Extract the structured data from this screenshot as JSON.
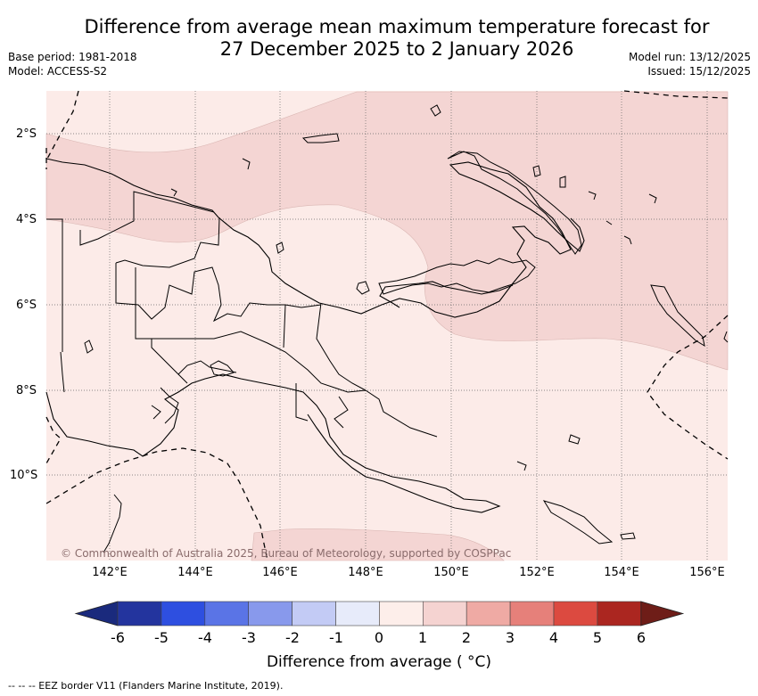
{
  "title_line1": "Difference from average mean maximum temperature forecast for",
  "title_line2": "27 December 2025 to 2 January 2026",
  "base_period": "Base period: 1981-2018",
  "model": "Model: ACCESS-S2",
  "model_run": "Model run: 13/12/2025",
  "issued": "Issued: 15/12/2025",
  "map": {
    "lon_range": [
      140.5,
      156.5
    ],
    "lat_range": [
      -12,
      -1
    ],
    "lat_ticks": [
      "2°S",
      "4°S",
      "6°S",
      "8°S",
      "10°S"
    ],
    "lon_ticks": [
      "142°E",
      "144°E",
      "146°E",
      "148°E",
      "150°E",
      "152°E",
      "154°E",
      "156°E"
    ],
    "copyright": "© Commonwealth of Australia 2025, Bureau of Meteorology, supported by COSPPac",
    "colors": {
      "anomaly_0_1": "#fbe9e6",
      "anomaly_1_2": "#f4d5d3",
      "ocean_background": "#fcebe8"
    }
  },
  "colorbar": {
    "tick_labels": [
      "-6",
      "-5",
      "-4",
      "-3",
      "-2",
      "-1",
      "0",
      "1",
      "2",
      "3",
      "4",
      "5",
      "6"
    ],
    "colors": [
      "#23349e",
      "#2e4fe0",
      "#5a74e6",
      "#8899ec",
      "#c3cbf5",
      "#e7ebfa",
      "#fdeeea",
      "#f5d3d1",
      "#efaaa4",
      "#e6807a",
      "#dc4a40",
      "#ab2620"
    ],
    "under_color": "#1a2a7d",
    "over_color": "#6e1d18",
    "label": "Difference from average ( °C)"
  },
  "footnote": "--  --  -- EEZ border V11 (Flanders Marine Institute, 2019)."
}
